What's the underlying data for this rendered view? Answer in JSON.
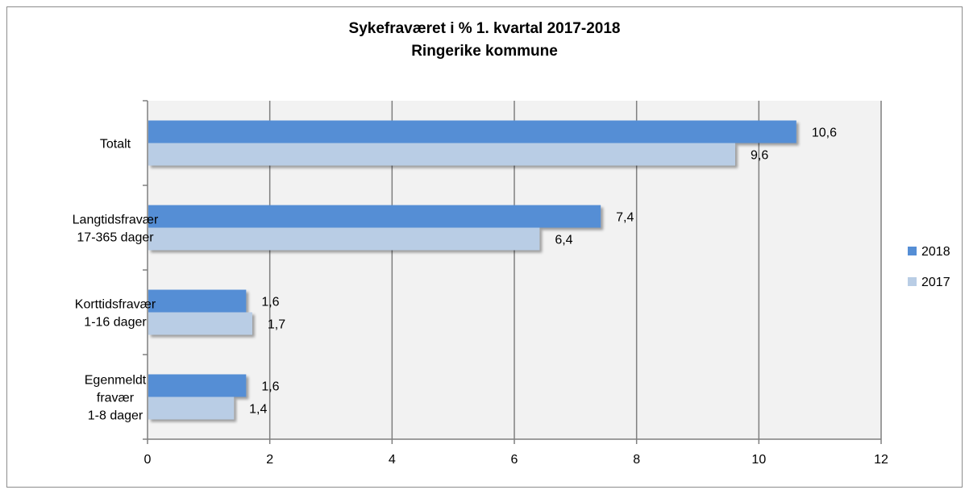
{
  "chart_data": {
    "type": "bar",
    "orientation": "horizontal",
    "title": "Sykefraværet i %  1. kvartal 2017-2018",
    "subtitle": "Ringerike kommune",
    "categories": [
      [
        "Totalt"
      ],
      [
        "Langtidsfravær",
        "17-365 dager"
      ],
      [
        "Korttidsfravær",
        "1-16 dager"
      ],
      [
        "Egenmeldt",
        "fravær",
        "1-8 dager"
      ]
    ],
    "series": [
      {
        "name": "2018",
        "values": [
          10.6,
          7.4,
          1.6,
          1.6
        ],
        "labels": [
          "10,6",
          "7,4",
          "1,6",
          "1,6"
        ],
        "color": "#558ed5"
      },
      {
        "name": "2017",
        "values": [
          9.6,
          6.4,
          1.7,
          1.4
        ],
        "labels": [
          "9,6",
          "6,4",
          "1,7",
          "1,4"
        ],
        "color": "#b9cde5"
      }
    ],
    "xlim": [
      0,
      12
    ],
    "xticks": [
      0,
      2,
      4,
      6,
      8,
      10,
      12
    ],
    "grid": true,
    "legend_position": "right",
    "plot_background": "#f2f2f2",
    "gridline_color": "#7f7f7f"
  }
}
